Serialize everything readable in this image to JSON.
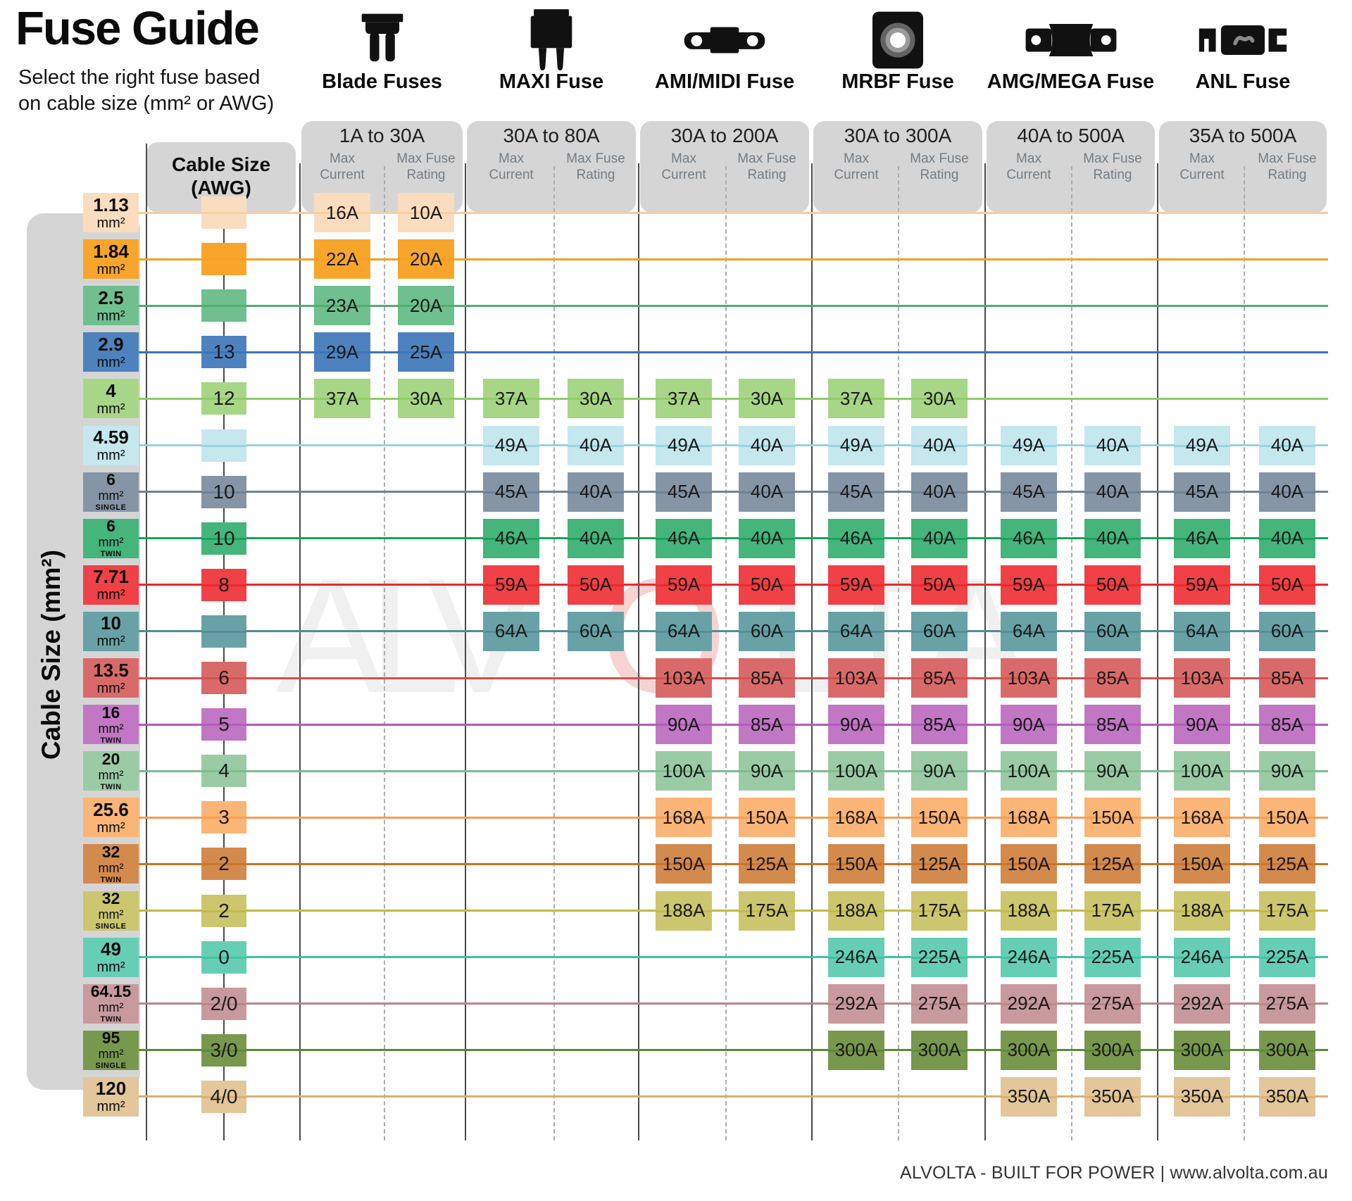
{
  "title": "Fuse Guide",
  "subtitle_line1": "Select the right fuse based",
  "subtitle_line2": "on cable size (mm² or AWG)",
  "left_axis_label": "Cable Size (mm²)",
  "awg_header": {
    "line1": "Cable Size",
    "line2": "(AWG)"
  },
  "col_subheaders": {
    "current": [
      "Max",
      "Current"
    ],
    "rating": [
      "Max Fuse",
      "Rating"
    ]
  },
  "footer": "ALVOLTA - BUILT FOR POWER | www.alvolta.com.au",
  "watermark": {
    "letters": [
      "A",
      "L",
      "V",
      "O",
      "L",
      "T",
      "A"
    ],
    "accent_index": 3,
    "color": "#f0f0f0",
    "accent_color": "#f6d2d2"
  },
  "colors": {
    "panel_gray": "#d5d5d6",
    "ink": "#0c0c0c",
    "muted_label": "#747d83"
  },
  "fuse_groups": [
    {
      "name": "Blade Fuses",
      "range": "1A to 30A",
      "icon": "blade-fuse-icon"
    },
    {
      "name": "MAXI Fuse",
      "range": "30A to 80A",
      "icon": "maxi-fuse-icon"
    },
    {
      "name": "AMI/MIDI Fuse",
      "range": "30A to 200A",
      "icon": "ami-midi-fuse-icon"
    },
    {
      "name": "MRBF Fuse",
      "range": "30A to 300A",
      "icon": "mrbf-fuse-icon"
    },
    {
      "name": "AMG/MEGA Fuse",
      "range": "40A to 500A",
      "icon": "amg-mega-fuse-icon"
    },
    {
      "name": "ANL Fuse",
      "range": "35A to 500A",
      "icon": "anl-fuse-icon"
    }
  ],
  "chart_data": {
    "type": "table",
    "row_axis": "Cable Size (mm²) with AWG equivalent",
    "column_axis": "Fuse family → Max Current / Max Fuse Rating",
    "rows": [
      {
        "size": "1.13",
        "unit": "mm²",
        "tag": "",
        "awg": "",
        "color": "#fadcbe",
        "line_color": "#f6cd9f",
        "cells": [
          [
            "16A",
            "10A"
          ],
          null,
          null,
          null,
          null,
          null
        ]
      },
      {
        "size": "1.84",
        "unit": "mm²",
        "tag": "",
        "awg": "",
        "color": "#f7a62b",
        "line_color": "#f5a021",
        "cells": [
          [
            "22A",
            "20A"
          ],
          null,
          null,
          null,
          null,
          null
        ]
      },
      {
        "size": "2.5",
        "unit": "mm²",
        "tag": "",
        "awg": "",
        "color": "#6fc08e",
        "line_color": "#4fae71",
        "cells": [
          [
            "23A",
            "20A"
          ],
          null,
          null,
          null,
          null,
          null
        ]
      },
      {
        "size": "2.9",
        "unit": "mm²",
        "tag": "",
        "awg": "13",
        "color": "#4e82be",
        "line_color": "#3b74b6",
        "cells": [
          [
            "29A",
            "25A"
          ],
          null,
          null,
          null,
          null,
          null
        ]
      },
      {
        "size": "4",
        "unit": "mm²",
        "tag": "",
        "awg": "12",
        "color": "#a8d687",
        "line_color": "#8fcb66",
        "cells": [
          [
            "37A",
            "30A"
          ],
          [
            "37A",
            "30A"
          ],
          [
            "37A",
            "30A"
          ],
          [
            "37A",
            "30A"
          ],
          null,
          null
        ]
      },
      {
        "size": "4.59",
        "unit": "mm²",
        "tag": "",
        "awg": "",
        "color": "#c5e7ee",
        "line_color": "#98d3de",
        "cells": [
          null,
          [
            "49A",
            "40A"
          ],
          [
            "49A",
            "40A"
          ],
          [
            "49A",
            "40A"
          ],
          [
            "49A",
            "40A"
          ],
          [
            "49A",
            "40A"
          ]
        ]
      },
      {
        "size": "6",
        "unit": "mm²",
        "tag": "SINGLE",
        "awg": "10",
        "color": "#8595a6",
        "line_color": "#6e8296",
        "cells": [
          null,
          [
            "45A",
            "40A"
          ],
          [
            "45A",
            "40A"
          ],
          [
            "45A",
            "40A"
          ],
          [
            "45A",
            "40A"
          ],
          [
            "45A",
            "40A"
          ]
        ]
      },
      {
        "size": "6",
        "unit": "mm²",
        "tag": "TWIN",
        "awg": "10",
        "color": "#45b57b",
        "line_color": "#17a25e",
        "cells": [
          null,
          [
            "46A",
            "40A"
          ],
          [
            "46A",
            "40A"
          ],
          [
            "46A",
            "40A"
          ],
          [
            "46A",
            "40A"
          ],
          [
            "46A",
            "40A"
          ]
        ]
      },
      {
        "size": "7.71",
        "unit": "mm²",
        "tag": "",
        "awg": "8",
        "color": "#ef4146",
        "line_color": "#ec272d",
        "cells": [
          null,
          [
            "59A",
            "50A"
          ],
          [
            "59A",
            "50A"
          ],
          [
            "59A",
            "50A"
          ],
          [
            "59A",
            "50A"
          ],
          [
            "59A",
            "50A"
          ]
        ]
      },
      {
        "size": "10",
        "unit": "mm²",
        "tag": "",
        "awg": "",
        "color": "#69a2a6",
        "line_color": "#528e93",
        "cells": [
          null,
          [
            "64A",
            "60A"
          ],
          [
            "64A",
            "60A"
          ],
          [
            "64A",
            "60A"
          ],
          [
            "64A",
            "60A"
          ],
          [
            "64A",
            "60A"
          ]
        ]
      },
      {
        "size": "13.5",
        "unit": "mm²",
        "tag": "",
        "awg": "6",
        "color": "#da6a6a",
        "line_color": "#d45050",
        "cells": [
          null,
          null,
          [
            "103A",
            "85A"
          ],
          [
            "103A",
            "85A"
          ],
          [
            "103A",
            "85A"
          ],
          [
            "103A",
            "85A"
          ]
        ]
      },
      {
        "size": "16",
        "unit": "mm²",
        "tag": "TWIN",
        "awg": "5",
        "color": "#c177c4",
        "line_color": "#b45ab9",
        "cells": [
          null,
          null,
          [
            "90A",
            "85A"
          ],
          [
            "90A",
            "85A"
          ],
          [
            "90A",
            "85A"
          ],
          [
            "90A",
            "85A"
          ]
        ]
      },
      {
        "size": "20",
        "unit": "mm²",
        "tag": "TWIN",
        "awg": "4",
        "color": "#9acba5",
        "line_color": "#7dbc8c",
        "cells": [
          null,
          null,
          [
            "100A",
            "90A"
          ],
          [
            "100A",
            "90A"
          ],
          [
            "100A",
            "90A"
          ],
          [
            "100A",
            "90A"
          ]
        ]
      },
      {
        "size": "25.6",
        "unit": "mm²",
        "tag": "",
        "awg": "3",
        "color": "#fab577",
        "line_color": "#f89d4e",
        "cells": [
          null,
          null,
          [
            "168A",
            "150A"
          ],
          [
            "168A",
            "150A"
          ],
          [
            "168A",
            "150A"
          ],
          [
            "168A",
            "150A"
          ]
        ]
      },
      {
        "size": "32",
        "unit": "mm²",
        "tag": "TWIN",
        "awg": "2",
        "color": "#d38a4d",
        "line_color": "#c97428",
        "cells": [
          null,
          null,
          [
            "150A",
            "125A"
          ],
          [
            "150A",
            "125A"
          ],
          [
            "150A",
            "125A"
          ],
          [
            "150A",
            "125A"
          ]
        ]
      },
      {
        "size": "32",
        "unit": "mm²",
        "tag": "SINGLE",
        "awg": "2",
        "color": "#ccc66e",
        "line_color": "#bfb948",
        "cells": [
          null,
          null,
          [
            "188A",
            "175A"
          ],
          [
            "188A",
            "175A"
          ],
          [
            "188A",
            "175A"
          ],
          [
            "188A",
            "175A"
          ]
        ]
      },
      {
        "size": "49",
        "unit": "mm²",
        "tag": "",
        "awg": "0",
        "color": "#67ceb6",
        "line_color": "#3fc3a1",
        "cells": [
          null,
          null,
          null,
          [
            "246A",
            "225A"
          ],
          [
            "246A",
            "225A"
          ],
          [
            "246A",
            "225A"
          ]
        ]
      },
      {
        "size": "64.15",
        "unit": "mm²",
        "tag": "TWIN",
        "awg": "2/0",
        "color": "#c89a9d",
        "line_color": "#ba8589",
        "cells": [
          null,
          null,
          null,
          [
            "292A",
            "275A"
          ],
          [
            "292A",
            "275A"
          ],
          [
            "292A",
            "275A"
          ]
        ]
      },
      {
        "size": "95",
        "unit": "mm²",
        "tag": "SINGLE",
        "awg": "3/0",
        "color": "#78984d",
        "line_color": "#5f8836",
        "cells": [
          null,
          null,
          null,
          [
            "300A",
            "300A"
          ],
          [
            "300A",
            "300A"
          ],
          [
            "300A",
            "300A"
          ]
        ]
      },
      {
        "size": "120",
        "unit": "mm²",
        "tag": "",
        "awg": "4/0",
        "color": "#e3c69a",
        "line_color": "#d9b170",
        "cells": [
          null,
          null,
          null,
          null,
          [
            "350A",
            "350A"
          ],
          [
            "350A",
            "350A"
          ]
        ]
      }
    ]
  }
}
